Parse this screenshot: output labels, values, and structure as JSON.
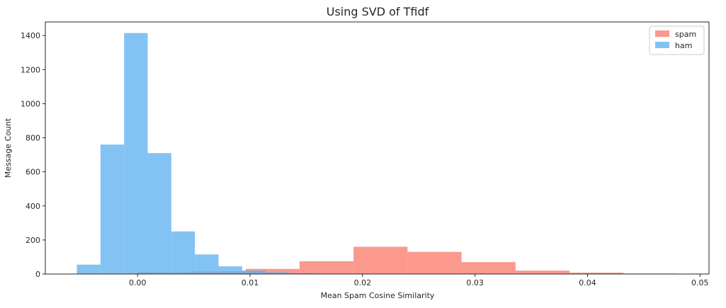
{
  "chart_data": {
    "type": "bar",
    "title": "Using SVD of Tfidf",
    "xlabel": "Mean Spam Cosine Similarity",
    "ylabel": "Message Count",
    "xlim": [
      -0.0082,
      0.0508
    ],
    "ylim": [
      0,
      1480
    ],
    "xticks": [
      {
        "value": 0.0,
        "label": "0.00"
      },
      {
        "value": 0.01,
        "label": "0.01"
      },
      {
        "value": 0.02,
        "label": "0.02"
      },
      {
        "value": 0.03,
        "label": "0.03"
      },
      {
        "value": 0.04,
        "label": "0.04"
      },
      {
        "value": 0.05,
        "label": "0.05"
      }
    ],
    "yticks": [
      {
        "value": 0,
        "label": "0"
      },
      {
        "value": 200,
        "label": "200"
      },
      {
        "value": 400,
        "label": "400"
      },
      {
        "value": 600,
        "label": "600"
      },
      {
        "value": 800,
        "label": "800"
      },
      {
        "value": 1000,
        "label": "1000"
      },
      {
        "value": 1200,
        "label": "1200"
      },
      {
        "value": 1400,
        "label": "1400"
      }
    ],
    "grid": false,
    "legend_position": "top-right",
    "series": [
      {
        "name": "spam",
        "color": "#fa8072",
        "opacity": 0.8,
        "bin_edges": [
          0.0,
          0.0048,
          0.0096,
          0.0144,
          0.0192,
          0.024,
          0.0288,
          0.0336,
          0.0384,
          0.0432,
          0.048
        ],
        "counts": [
          10,
          15,
          30,
          75,
          160,
          130,
          70,
          20,
          8,
          3
        ]
      },
      {
        "name": "ham",
        "color": "#5aaff0",
        "opacity": 0.75,
        "bin_edges": [
          -0.0054,
          -0.0033,
          -0.0012,
          0.0009,
          0.003,
          0.0051,
          0.0072,
          0.0093,
          0.0114,
          0.0135,
          0.0156
        ],
        "counts": [
          55,
          760,
          1415,
          710,
          250,
          115,
          45,
          20,
          10,
          5
        ]
      }
    ]
  }
}
